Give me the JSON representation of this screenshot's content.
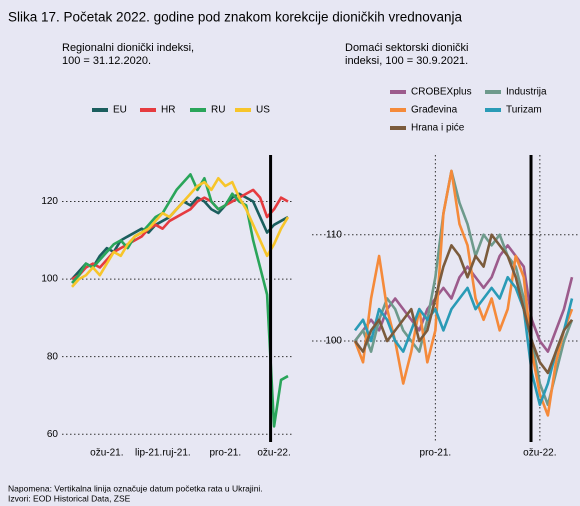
{
  "title": "Slika 17. Početak 2022. godine pod znakom korekcije dioničkih vrednovanja",
  "notes": [
    "Napomena: Vertikalna linija označuje datum početka rata u Ukrajini.",
    "Izvori: EOD Historical Data, ZSE"
  ],
  "chart_data": [
    {
      "type": "line",
      "subtitle": [
        "Regionalni dionički indeksi,",
        "100 = 31.12.2020."
      ],
      "categories": [
        null,
        null,
        null,
        null,
        null,
        "ožu-21.",
        null,
        null,
        null,
        null,
        null,
        "lip-21.",
        null,
        null,
        null,
        "ruj-21.",
        null,
        null,
        null,
        null,
        null,
        null,
        "pro-21.",
        null,
        null,
        null,
        null,
        null,
        null,
        "ožu-22.",
        null,
        null
      ],
      "vertical_line": 28.5,
      "ylim": [
        58,
        132
      ],
      "yticks": [
        60,
        80,
        100,
        120
      ],
      "grid": true,
      "xgrid": false,
      "series": [
        {
          "name": "EU",
          "color": "#1b5e5e",
          "values": [
            100,
            102,
            104,
            103,
            106,
            108,
            107,
            110,
            111,
            112,
            113,
            112,
            114,
            115,
            116,
            118,
            120,
            119,
            121,
            120,
            118,
            117,
            119,
            121,
            122,
            121,
            120,
            116,
            112,
            114,
            115,
            116
          ]
        },
        {
          "name": "HR",
          "color": "#e63b3f",
          "values": [
            100,
            101,
            103,
            104,
            103,
            105,
            107,
            108,
            109,
            110,
            111,
            113,
            114,
            113,
            115,
            116,
            117,
            118,
            120,
            121,
            120,
            118,
            119,
            120,
            121,
            122,
            123,
            121,
            116,
            118,
            121,
            120
          ]
        },
        {
          "name": "RU",
          "color": "#2aa55a",
          "values": [
            99,
            101,
            104,
            103,
            105,
            107,
            109,
            110,
            108,
            111,
            112,
            114,
            116,
            117,
            120,
            123,
            125,
            127,
            123,
            126,
            120,
            118,
            119,
            122,
            120,
            119,
            110,
            103,
            96,
            62,
            74,
            75
          ]
        },
        {
          "name": "US",
          "color": "#f7c52a",
          "values": [
            98,
            100,
            101,
            103,
            101,
            104,
            107,
            106,
            109,
            111,
            112,
            113,
            115,
            117,
            116,
            118,
            120,
            122,
            124,
            125,
            123,
            126,
            124,
            125,
            121,
            118,
            114,
            110,
            106,
            109,
            113,
            116
          ]
        }
      ]
    },
    {
      "type": "line",
      "subtitle": [
        "Domaći sektorski dionički",
        "indeksi, 100 = 30.9.2021."
      ],
      "categories": [
        null,
        null,
        null,
        null,
        null,
        null,
        null,
        null,
        null,
        null,
        "pro-21.",
        null,
        null,
        null,
        null,
        null,
        null,
        null,
        null,
        null,
        null,
        null,
        null,
        "ožu-22.",
        null,
        null,
        null,
        null
      ],
      "vertical_line": 21.9,
      "ylim": [
        90.5,
        117.5
      ],
      "yticks": [
        100,
        110
      ],
      "grid": true,
      "xgrid": true,
      "series": [
        {
          "name": "CROBEXplus",
          "color": "#9c5b8c",
          "values": [
            100,
            101,
            102,
            101,
            103,
            104,
            103,
            102,
            101,
            103,
            104,
            105,
            104,
            106,
            107,
            106,
            105,
            106,
            108,
            109,
            108,
            107,
            102,
            100,
            99,
            101,
            103,
            106
          ]
        },
        {
          "name": "Industrija",
          "color": "#6e9a8c",
          "values": [
            100,
            101,
            99,
            102,
            104,
            103,
            101,
            100,
            99,
            102,
            106,
            112,
            116,
            113,
            111,
            108,
            110,
            109,
            110,
            108,
            107,
            104,
            100,
            96,
            94,
            97,
            100,
            102
          ]
        },
        {
          "name": "Građevina",
          "color": "#f58a3a",
          "values": [
            100,
            98,
            104,
            108,
            103,
            100,
            96,
            99,
            103,
            98,
            101,
            112,
            116,
            111,
            109,
            104,
            102,
            104,
            101,
            103,
            108,
            106,
            99,
            95,
            93,
            98,
            101,
            103
          ]
        },
        {
          "name": "Turizam",
          "color": "#2a9bb6",
          "values": [
            101,
            102,
            100,
            103,
            102,
            100,
            99,
            101,
            103,
            102,
            103,
            101,
            103,
            104,
            105,
            103,
            104,
            105,
            104,
            106,
            105,
            103,
            97,
            94,
            96,
            99,
            101,
            104
          ]
        },
        {
          "name": "Hrana i piće",
          "color": "#7b5b3c",
          "values": [
            100,
            99,
            101,
            102,
            100,
            101,
            102,
            103,
            100,
            101,
            104,
            107,
            109,
            108,
            106,
            108,
            107,
            110,
            109,
            108,
            106,
            103,
            100,
            98,
            97,
            99,
            101,
            102
          ]
        }
      ]
    }
  ]
}
